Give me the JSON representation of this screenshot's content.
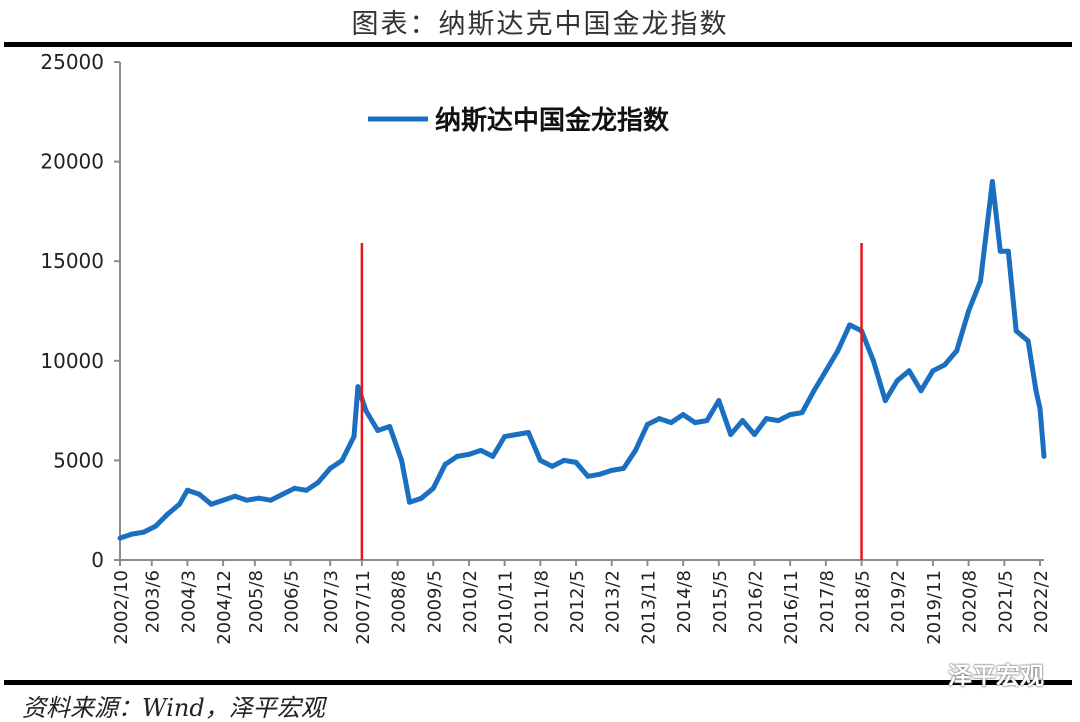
{
  "title": "图表：纳斯达克中国金龙指数",
  "source": "资料来源：Wind，泽平宏观",
  "watermark": "泽平宏观",
  "colors": {
    "series": "#1a6fc0",
    "marker_lines": "#e8141c",
    "axis": "#8c8c8c"
  },
  "chart_data": {
    "type": "line",
    "title": "",
    "xlabel": "",
    "ylabel": "",
    "ylim": [
      0,
      25000
    ],
    "yticks": [
      0,
      5000,
      10000,
      15000,
      20000,
      25000
    ],
    "xticks": [
      "2002/10",
      "2003/6",
      "2004/3",
      "2004/12",
      "2005/8",
      "2006/5",
      "2007/3",
      "2007/11",
      "2008/8",
      "2009/5",
      "2010/2",
      "2010/11",
      "2011/8",
      "2012/5",
      "2013/2",
      "2013/11",
      "2014/8",
      "2015/5",
      "2016/2",
      "2016/11",
      "2017/8",
      "2018/5",
      "2019/2",
      "2019/11",
      "2020/8",
      "2021/5",
      "2022/2"
    ],
    "grid": false,
    "legend": "top-center",
    "vertical_markers": [
      "2007/11",
      "2018/5"
    ],
    "series": [
      {
        "name": "纳斯达中国金龙指数",
        "x": [
          "2002/10",
          "2003/1",
          "2003/4",
          "2003/7",
          "2003/10",
          "2004/1",
          "2004/3",
          "2004/6",
          "2004/9",
          "2004/12",
          "2005/3",
          "2005/6",
          "2005/9",
          "2005/12",
          "2006/3",
          "2006/6",
          "2006/9",
          "2006/12",
          "2007/3",
          "2007/6",
          "2007/9",
          "2007/10",
          "2007/12",
          "2008/3",
          "2008/6",
          "2008/9",
          "2008/11",
          "2009/2",
          "2009/5",
          "2009/8",
          "2009/11",
          "2010/2",
          "2010/5",
          "2010/8",
          "2010/11",
          "2011/2",
          "2011/5",
          "2011/8",
          "2011/11",
          "2012/2",
          "2012/5",
          "2012/8",
          "2012/11",
          "2013/2",
          "2013/5",
          "2013/8",
          "2013/11",
          "2014/2",
          "2014/5",
          "2014/8",
          "2014/11",
          "2015/2",
          "2015/5",
          "2015/8",
          "2015/11",
          "2016/2",
          "2016/5",
          "2016/8",
          "2016/11",
          "2017/2",
          "2017/5",
          "2017/8",
          "2017/11",
          "2018/2",
          "2018/5",
          "2018/8",
          "2018/11",
          "2019/2",
          "2019/5",
          "2019/8",
          "2019/11",
          "2020/2",
          "2020/5",
          "2020/8",
          "2020/11",
          "2021/2",
          "2021/4",
          "2021/6",
          "2021/8",
          "2021/11",
          "2022/1",
          "2022/2",
          "2022/3"
        ],
        "values": [
          1100,
          1300,
          1400,
          1700,
          2300,
          2800,
          3500,
          3300,
          2800,
          3000,
          3200,
          3000,
          3100,
          3000,
          3300,
          3600,
          3500,
          3900,
          4600,
          5000,
          6200,
          8700,
          7500,
          6500,
          6700,
          5000,
          2900,
          3100,
          3600,
          4800,
          5200,
          5300,
          5500,
          5200,
          6200,
          6300,
          6400,
          5000,
          4700,
          5000,
          4900,
          4200,
          4300,
          4500,
          4600,
          5500,
          6800,
          7100,
          6900,
          7300,
          6900,
          7000,
          8000,
          6300,
          7000,
          6300,
          7100,
          7000,
          7300,
          7400,
          8500,
          9500,
          10500,
          11800,
          11500,
          10000,
          8000,
          9000,
          9500,
          8500,
          9500,
          9800,
          10500,
          12500,
          14000,
          19000,
          15500,
          15500,
          11500,
          11000,
          8500,
          7600,
          5200
        ]
      }
    ]
  }
}
